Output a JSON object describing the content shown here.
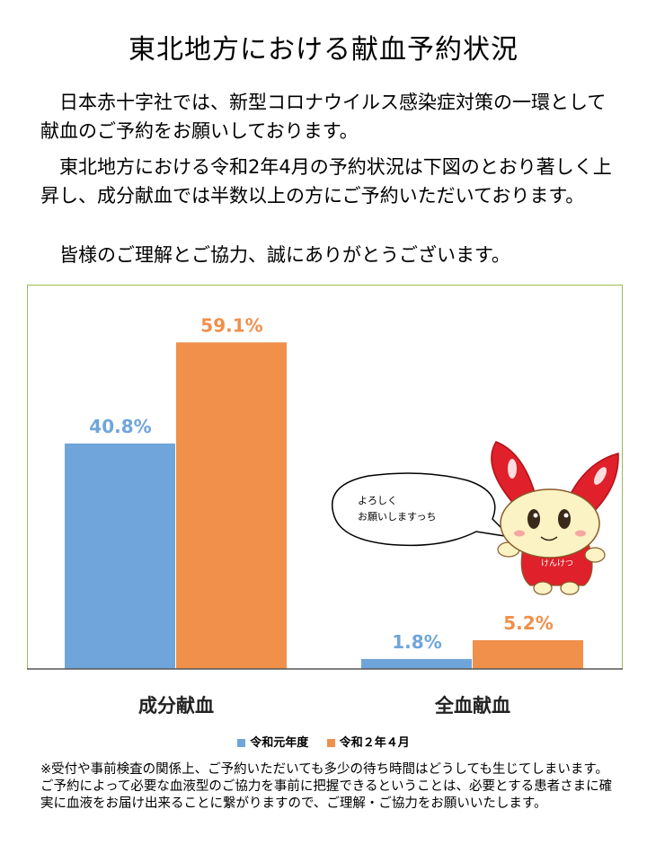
{
  "title": "東北地方における献血予約状況",
  "paragraphs": [
    "日本赤十字社では、新型コロナウイルス感染症対策の一環として献血のご予約をお願いしております。",
    "東北地方における令和2年4月の予約状況は下図のとおり著しく上昇し、成分献血では半数以上の方にご予約いただいております。",
    "皆様のご理解とご協力、誠にありがとうございます。"
  ],
  "mascot": {
    "speech": [
      "よろしく",
      "お願いしますっち"
    ],
    "shirt_text": "けんけつ"
  },
  "note": "※受付や事前検査の関係上、ご予約いただいても多少の待ち時間はどうしても生じてしまいます。ご予約によって必要な血液型のご協力を事前に把握できるということは、必要とする患者さまに確実に血液をお届け出来ることに繋がりますので、ご理解・ご協力をお願いいたします。",
  "chart_data": {
    "type": "bar",
    "categories": [
      "成分献血",
      "全血献血"
    ],
    "series": [
      {
        "name": "令和元年度",
        "values": [
          40.8,
          1.8
        ],
        "labels": [
          "40.8%",
          "1.8%"
        ],
        "color": "#6fa5db"
      },
      {
        "name": "令和２年４月",
        "values": [
          59.1,
          5.2
        ],
        "labels": [
          "59.1%",
          "5.2%"
        ],
        "color": "#f0904b"
      }
    ],
    "ylim": [
      0,
      65
    ],
    "grid": false,
    "legend": "bottom"
  }
}
